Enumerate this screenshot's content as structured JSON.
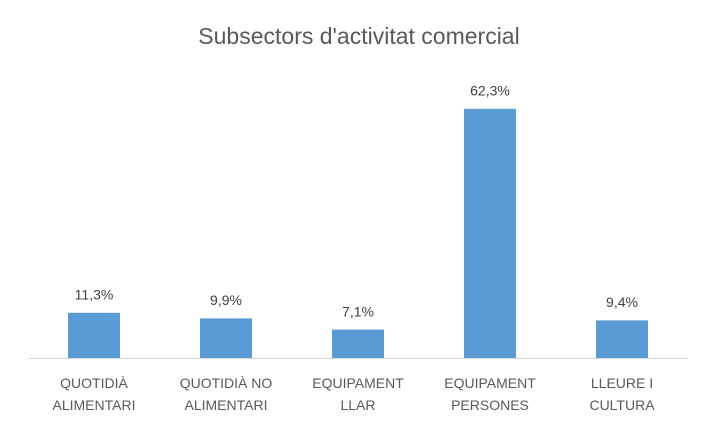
{
  "chart_data": {
    "type": "bar",
    "title": "Subsectors d'activitat comercial",
    "categories": [
      "QUOTIDIÀ ALIMENTARI",
      "QUOTIDIÀ NO ALIMENTARI",
      "EQUIPAMENT LLAR",
      "EQUIPAMENT PERSONES",
      "LLEURE I CULTURA"
    ],
    "values": [
      11.3,
      9.9,
      7.1,
      62.3,
      9.4
    ],
    "value_labels": [
      "11,3%",
      "9,9%",
      "7,1%",
      "62,3%",
      "9,4%"
    ],
    "color": "#5b9bd5"
  }
}
